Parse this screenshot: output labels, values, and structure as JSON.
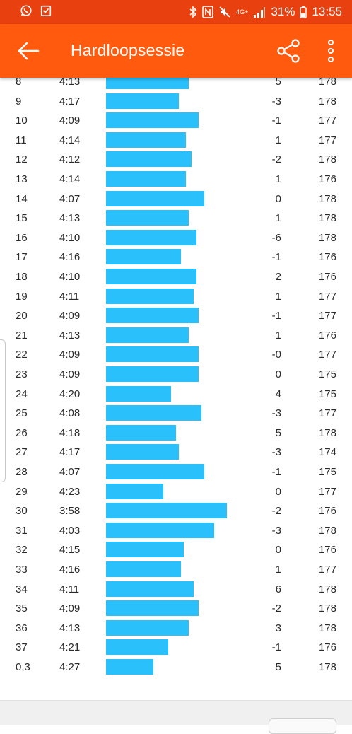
{
  "status_bar": {
    "battery": "31%",
    "time": "13:55",
    "network": "4G+",
    "icons": [
      "whatsapp-icon",
      "clipboard-check-icon",
      "bluetooth-icon",
      "nfc-icon",
      "mute-icon",
      "signal-icon",
      "battery-icon"
    ]
  },
  "app_bar": {
    "title": "Hardloopsessie",
    "icons": [
      "back-arrow-icon",
      "share-icon",
      "more-vert-icon"
    ]
  },
  "colors": {
    "status_bar": "#e8410f",
    "app_bar": "#ff5a0e",
    "bar": "#29c0fb"
  },
  "splits": [
    {
      "km": "8",
      "pace": "4:13",
      "pace_sec": 253,
      "elev": "5",
      "hr": "178"
    },
    {
      "km": "9",
      "pace": "4:17",
      "pace_sec": 257,
      "elev": "-3",
      "hr": "178"
    },
    {
      "km": "10",
      "pace": "4:09",
      "pace_sec": 249,
      "elev": "-1",
      "hr": "177"
    },
    {
      "km": "11",
      "pace": "4:14",
      "pace_sec": 254,
      "elev": "1",
      "hr": "177"
    },
    {
      "km": "12",
      "pace": "4:12",
      "pace_sec": 252,
      "elev": "-2",
      "hr": "178"
    },
    {
      "km": "13",
      "pace": "4:14",
      "pace_sec": 254,
      "elev": "1",
      "hr": "176"
    },
    {
      "km": "14",
      "pace": "4:07",
      "pace_sec": 247,
      "elev": "0",
      "hr": "178"
    },
    {
      "km": "15",
      "pace": "4:13",
      "pace_sec": 253,
      "elev": "1",
      "hr": "178"
    },
    {
      "km": "16",
      "pace": "4:10",
      "pace_sec": 250,
      "elev": "-6",
      "hr": "178"
    },
    {
      "km": "17",
      "pace": "4:16",
      "pace_sec": 256,
      "elev": "-1",
      "hr": "176"
    },
    {
      "km": "18",
      "pace": "4:10",
      "pace_sec": 250,
      "elev": "2",
      "hr": "176"
    },
    {
      "km": "19",
      "pace": "4:11",
      "pace_sec": 251,
      "elev": "1",
      "hr": "177"
    },
    {
      "km": "20",
      "pace": "4:09",
      "pace_sec": 249,
      "elev": "-1",
      "hr": "177"
    },
    {
      "km": "21",
      "pace": "4:13",
      "pace_sec": 253,
      "elev": "1",
      "hr": "176"
    },
    {
      "km": "22",
      "pace": "4:09",
      "pace_sec": 249,
      "elev": "-0",
      "hr": "177"
    },
    {
      "km": "23",
      "pace": "4:09",
      "pace_sec": 249,
      "elev": "0",
      "hr": "175"
    },
    {
      "km": "24",
      "pace": "4:20",
      "pace_sec": 260,
      "elev": "4",
      "hr": "175"
    },
    {
      "km": "25",
      "pace": "4:08",
      "pace_sec": 248,
      "elev": "-3",
      "hr": "177"
    },
    {
      "km": "26",
      "pace": "4:18",
      "pace_sec": 258,
      "elev": "5",
      "hr": "178"
    },
    {
      "km": "27",
      "pace": "4:17",
      "pace_sec": 257,
      "elev": "-3",
      "hr": "174"
    },
    {
      "km": "28",
      "pace": "4:07",
      "pace_sec": 247,
      "elev": "-1",
      "hr": "175"
    },
    {
      "km": "29",
      "pace": "4:23",
      "pace_sec": 263,
      "elev": "0",
      "hr": "177"
    },
    {
      "km": "30",
      "pace": "3:58",
      "pace_sec": 238,
      "elev": "-2",
      "hr": "176"
    },
    {
      "km": "31",
      "pace": "4:03",
      "pace_sec": 243,
      "elev": "-3",
      "hr": "178"
    },
    {
      "km": "32",
      "pace": "4:15",
      "pace_sec": 255,
      "elev": "0",
      "hr": "176"
    },
    {
      "km": "33",
      "pace": "4:16",
      "pace_sec": 256,
      "elev": "1",
      "hr": "177"
    },
    {
      "km": "34",
      "pace": "4:11",
      "pace_sec": 251,
      "elev": "6",
      "hr": "178"
    },
    {
      "km": "35",
      "pace": "4:09",
      "pace_sec": 249,
      "elev": "-2",
      "hr": "178"
    },
    {
      "km": "36",
      "pace": "4:13",
      "pace_sec": 253,
      "elev": "3",
      "hr": "178"
    },
    {
      "km": "37",
      "pace": "4:21",
      "pace_sec": 261,
      "elev": "-1",
      "hr": "176"
    },
    {
      "km": "0,3",
      "pace": "4:27",
      "pace_sec": 267,
      "elev": "5",
      "hr": "178"
    }
  ]
}
